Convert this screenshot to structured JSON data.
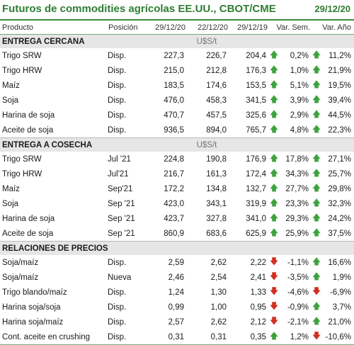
{
  "header": {
    "title": "Futuros de commodities agrícolas EE.UU., CBOT/CME",
    "date": "29/12/20"
  },
  "columns": [
    "Producto",
    "Posición",
    "29/12/20",
    "22/12/20",
    "29/12/19",
    "Var. Sem.",
    "Var. Año"
  ],
  "sections": [
    {
      "title": "ENTREGA CERCANA",
      "unit": "U$S/t",
      "rows": [
        {
          "name": "Trigo SRW",
          "pos": "Disp.",
          "v1": "227,3",
          "v2": "226,7",
          "v3": "204,4",
          "a1": "up",
          "sem": "0,2%",
          "a2": "up",
          "ano": "11,2%"
        },
        {
          "name": "Trigo HRW",
          "pos": "Disp.",
          "v1": "215,0",
          "v2": "212,8",
          "v3": "176,3",
          "a1": "up",
          "sem": "1,0%",
          "a2": "up",
          "ano": "21,9%"
        },
        {
          "name": "Maíz",
          "pos": "Disp.",
          "v1": "183,5",
          "v2": "174,6",
          "v3": "153,5",
          "a1": "up",
          "sem": "5,1%",
          "a2": "up",
          "ano": "19,5%"
        },
        {
          "name": "Soja",
          "pos": "Disp.",
          "v1": "476,0",
          "v2": "458,3",
          "v3": "341,5",
          "a1": "up",
          "sem": "3,9%",
          "a2": "up",
          "ano": "39,4%"
        },
        {
          "name": "Harina de soja",
          "pos": "Disp.",
          "v1": "470,7",
          "v2": "457,5",
          "v3": "325,6",
          "a1": "up",
          "sem": "2,9%",
          "a2": "up",
          "ano": "44,5%"
        },
        {
          "name": "Aceite de soja",
          "pos": "Disp.",
          "v1": "936,5",
          "v2": "894,0",
          "v3": "765,7",
          "a1": "up",
          "sem": "4,8%",
          "a2": "up",
          "ano": "22,3%"
        }
      ]
    },
    {
      "title": "ENTREGA A COSECHA",
      "unit": "U$S/t",
      "rows": [
        {
          "name": "Trigo SRW",
          "pos": "Jul '21",
          "v1": "224,8",
          "v2": "190,8",
          "v3": "176,9",
          "a1": "up",
          "sem": "17,8%",
          "a2": "up",
          "ano": "27,1%"
        },
        {
          "name": "Trigo HRW",
          "pos": "Jul'21",
          "v1": "216,7",
          "v2": "161,3",
          "v3": "172,4",
          "a1": "up",
          "sem": "34,3%",
          "a2": "up",
          "ano": "25,7%"
        },
        {
          "name": "Maíz",
          "pos": "Sep'21",
          "v1": "172,2",
          "v2": "134,8",
          "v3": "132,7",
          "a1": "up",
          "sem": "27,7%",
          "a2": "up",
          "ano": "29,8%"
        },
        {
          "name": "Soja",
          "pos": "Sep '21",
          "v1": "423,0",
          "v2": "343,1",
          "v3": "319,9",
          "a1": "up",
          "sem": "23,3%",
          "a2": "up",
          "ano": "32,3%"
        },
        {
          "name": "Harina de soja",
          "pos": "Sep '21",
          "v1": "423,7",
          "v2": "327,8",
          "v3": "341,0",
          "a1": "up",
          "sem": "29,3%",
          "a2": "up",
          "ano": "24,2%"
        },
        {
          "name": "Aceite de soja",
          "pos": "Sep '21",
          "v1": "860,9",
          "v2": "683,6",
          "v3": "625,9",
          "a1": "up",
          "sem": "25,9%",
          "a2": "up",
          "ano": "37,5%"
        }
      ]
    },
    {
      "title": "RELACIONES DE PRECIOS",
      "unit": "",
      "rows": [
        {
          "name": "Soja/maíz",
          "pos": "Disp.",
          "v1": "2,59",
          "v2": "2,62",
          "v3": "2,22",
          "a1": "down",
          "sem": "-1,1%",
          "a2": "up",
          "ano": "16,6%"
        },
        {
          "name": "Soja/maíz",
          "pos": "Nueva",
          "v1": "2,46",
          "v2": "2,54",
          "v3": "2,41",
          "a1": "down",
          "sem": "-3,5%",
          "a2": "up",
          "ano": "1,9%"
        },
        {
          "name": "Trigo blando/maíz",
          "pos": "Disp.",
          "v1": "1,24",
          "v2": "1,30",
          "v3": "1,33",
          "a1": "down",
          "sem": "-4,6%",
          "a2": "down",
          "ano": "-6,9%"
        },
        {
          "name": "Harina soja/soja",
          "pos": "Disp.",
          "v1": "0,99",
          "v2": "1,00",
          "v3": "0,95",
          "a1": "down",
          "sem": "-0,9%",
          "a2": "up",
          "ano": "3,7%"
        },
        {
          "name": "Harina soja/maíz",
          "pos": "Disp.",
          "v1": "2,57",
          "v2": "2,62",
          "v3": "2,12",
          "a1": "down",
          "sem": "-2,1%",
          "a2": "up",
          "ano": "21,0%"
        },
        {
          "name": "Cont. aceite en crushing",
          "pos": "Disp.",
          "v1": "0,31",
          "v2": "0,31",
          "v3": "0,35",
          "a1": "up",
          "sem": "1,2%",
          "a2": "down",
          "ano": "-10,6%"
        }
      ]
    }
  ],
  "colors": {
    "accent": "#2e7d32",
    "up": "#3da33d",
    "down": "#d03020",
    "section_bg": "#e6e6e6"
  },
  "icons": {
    "up": "arrow-up-icon",
    "down": "arrow-down-icon"
  }
}
